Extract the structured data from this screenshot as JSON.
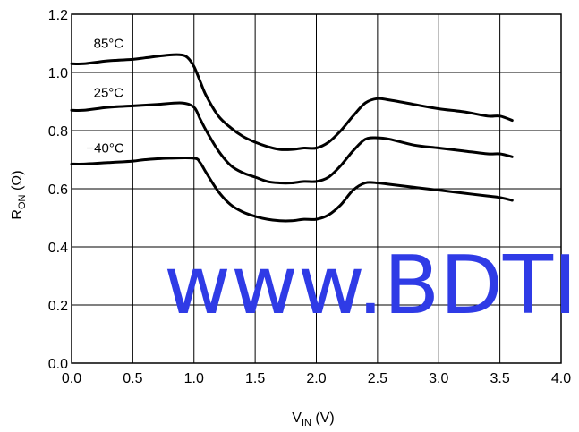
{
  "chart_data": {
    "type": "line",
    "xlabel_main": "V",
    "xlabel_sub": "IN",
    "xlabel_unit": " (V)",
    "ylabel_main": "R",
    "ylabel_sub": "ON",
    "ylabel_unit": " (Ω)",
    "xlim": [
      0.0,
      4.0
    ],
    "ylim": [
      0.0,
      1.2
    ],
    "x_ticks": [
      0.0,
      0.5,
      1.0,
      1.5,
      2.0,
      2.5,
      3.0,
      3.5,
      4.0
    ],
    "y_ticks": [
      0.0,
      0.2,
      0.4,
      0.6,
      0.8,
      1.0,
      1.2
    ],
    "x_tick_labels": [
      "0.0",
      "0.5",
      "1.0",
      "1.5",
      "2.0",
      "2.5",
      "3.0",
      "3.5",
      "4.0"
    ],
    "y_tick_labels": [
      "0.0",
      "0.2",
      "0.4",
      "0.6",
      "0.8",
      "1.0",
      "1.2"
    ],
    "grid": true,
    "series": [
      {
        "name": "85°C",
        "x": [
          0.0,
          0.1,
          0.3,
          0.5,
          0.6,
          0.8,
          0.9,
          0.95,
          1.0,
          1.05,
          1.1,
          1.2,
          1.3,
          1.4,
          1.5,
          1.6,
          1.7,
          1.8,
          1.9,
          2.0,
          2.1,
          2.2,
          2.3,
          2.4,
          2.5,
          2.6,
          2.8,
          3.0,
          3.2,
          3.4,
          3.5,
          3.6
        ],
        "y": [
          1.03,
          1.03,
          1.04,
          1.045,
          1.05,
          1.06,
          1.06,
          1.05,
          1.02,
          0.97,
          0.92,
          0.85,
          0.81,
          0.78,
          0.76,
          0.745,
          0.735,
          0.735,
          0.74,
          0.74,
          0.76,
          0.8,
          0.85,
          0.895,
          0.91,
          0.905,
          0.89,
          0.875,
          0.865,
          0.85,
          0.85,
          0.835
        ]
      },
      {
        "name": "25°C",
        "x": [
          0.0,
          0.1,
          0.3,
          0.5,
          0.7,
          0.9,
          1.0,
          1.05,
          1.1,
          1.2,
          1.3,
          1.4,
          1.5,
          1.6,
          1.7,
          1.8,
          1.9,
          2.0,
          2.1,
          2.2,
          2.3,
          2.4,
          2.5,
          2.6,
          2.8,
          3.0,
          3.2,
          3.4,
          3.5,
          3.6
        ],
        "y": [
          0.87,
          0.87,
          0.88,
          0.885,
          0.89,
          0.895,
          0.88,
          0.84,
          0.8,
          0.73,
          0.68,
          0.655,
          0.64,
          0.625,
          0.62,
          0.62,
          0.625,
          0.625,
          0.64,
          0.68,
          0.73,
          0.77,
          0.775,
          0.77,
          0.75,
          0.74,
          0.73,
          0.72,
          0.72,
          0.71
        ]
      },
      {
        "name": "−40°C",
        "x": [
          0.0,
          0.1,
          0.3,
          0.5,
          0.6,
          0.8,
          1.0,
          1.05,
          1.1,
          1.2,
          1.3,
          1.4,
          1.5,
          1.6,
          1.7,
          1.8,
          1.9,
          2.0,
          2.1,
          2.2,
          2.3,
          2.4,
          2.5,
          2.6,
          2.8,
          3.0,
          3.2,
          3.4,
          3.5,
          3.6
        ],
        "y": [
          0.685,
          0.685,
          0.69,
          0.695,
          0.7,
          0.705,
          0.705,
          0.69,
          0.655,
          0.59,
          0.545,
          0.52,
          0.505,
          0.495,
          0.49,
          0.49,
          0.495,
          0.495,
          0.51,
          0.545,
          0.595,
          0.62,
          0.62,
          0.615,
          0.605,
          0.595,
          0.585,
          0.575,
          0.57,
          0.56
        ]
      }
    ],
    "series_label_anchor": [
      {
        "x": 0.18,
        "y": 1.085
      },
      {
        "x": 0.18,
        "y": 0.915
      },
      {
        "x": 0.12,
        "y": 0.725
      }
    ]
  },
  "watermark": {
    "text": "www.BDTI",
    "color": "#2f3be6"
  }
}
